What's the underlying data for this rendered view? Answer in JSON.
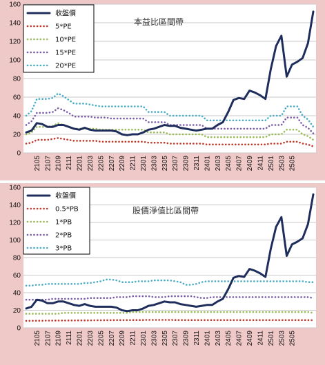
{
  "chart_data": [
    {
      "type": "line",
      "title": "本益比區間帶",
      "xlabel": "",
      "ylabel": "",
      "ylim": [
        0,
        160
      ],
      "yticks": [
        0,
        20,
        40,
        60,
        80,
        100,
        120,
        140,
        160
      ],
      "grid": true,
      "legend_position": "top-left",
      "tick_labels": [
        "2105",
        "2107",
        "2109",
        "2111",
        "2201",
        "2203",
        "2205",
        "2207",
        "2209",
        "2211",
        "2301",
        "2303",
        "2305",
        "2307",
        "2309",
        "2311",
        "2401",
        "2403",
        "2405",
        "2407",
        "2409",
        "2411",
        "2501",
        "2503",
        "2505"
      ],
      "series": [
        {
          "name": "收盤價",
          "color": "#1f2d5c",
          "style": "solid",
          "values": [
            22,
            24,
            32,
            31,
            28,
            28,
            30,
            30,
            28,
            26,
            25,
            27,
            25,
            24,
            24,
            24,
            24,
            23,
            20,
            19,
            20,
            20,
            22,
            25,
            26,
            28,
            30,
            29,
            29,
            27,
            26,
            25,
            24,
            25,
            26,
            26,
            30,
            33,
            44,
            57,
            59,
            58,
            67,
            65,
            62,
            58,
            90,
            115,
            126,
            82,
            95,
            98,
            102,
            118,
            152
          ]
        },
        {
          "name": "5*PE",
          "color": "#c0392b",
          "style": "dotted",
          "values": [
            10,
            11,
            14,
            14,
            14,
            15,
            16,
            15,
            14,
            13,
            13,
            13,
            13,
            13,
            12,
            12,
            12,
            12,
            12,
            12,
            12,
            12,
            12,
            11,
            11,
            11,
            11,
            10,
            10,
            10,
            10,
            10,
            10,
            10,
            9,
            9,
            9,
            9,
            9,
            9,
            9,
            9,
            9,
            9,
            9,
            9,
            10,
            10,
            10,
            12,
            12,
            12,
            10,
            9,
            7
          ]
        },
        {
          "name": "10*PE",
          "color": "#9bbb59",
          "style": "dotted",
          "values": [
            20,
            22,
            28,
            28,
            28,
            29,
            32,
            30,
            28,
            26,
            26,
            26,
            26,
            26,
            25,
            25,
            25,
            25,
            25,
            25,
            25,
            25,
            25,
            22,
            22,
            22,
            22,
            20,
            20,
            20,
            20,
            20,
            20,
            20,
            17,
            17,
            17,
            17,
            17,
            17,
            17,
            17,
            17,
            17,
            17,
            17,
            20,
            20,
            20,
            25,
            25,
            25,
            20,
            18,
            14
          ]
        },
        {
          "name": "15*PE",
          "color": "#7b5ea7",
          "style": "dotted",
          "values": [
            30,
            34,
            43,
            43,
            43,
            44,
            48,
            46,
            43,
            39,
            39,
            39,
            39,
            38,
            38,
            38,
            37,
            37,
            37,
            37,
            37,
            37,
            37,
            33,
            33,
            33,
            33,
            30,
            30,
            30,
            30,
            30,
            30,
            30,
            26,
            26,
            26,
            26,
            26,
            26,
            26,
            26,
            26,
            26,
            26,
            26,
            30,
            30,
            30,
            38,
            38,
            38,
            30,
            27,
            21
          ]
        },
        {
          "name": "20*PE",
          "color": "#4bacc6",
          "style": "dotted",
          "values": [
            40,
            45,
            58,
            58,
            58,
            59,
            64,
            61,
            57,
            53,
            53,
            53,
            52,
            51,
            50,
            50,
            50,
            50,
            50,
            50,
            50,
            50,
            50,
            44,
            44,
            44,
            44,
            40,
            40,
            40,
            40,
            40,
            40,
            40,
            35,
            35,
            35,
            35,
            35,
            35,
            35,
            35,
            35,
            35,
            35,
            35,
            40,
            40,
            40,
            50,
            50,
            50,
            40,
            36,
            28
          ]
        }
      ]
    },
    {
      "type": "line",
      "title": "股價淨值比區間帶",
      "xlabel": "",
      "ylabel": "",
      "ylim": [
        0,
        160
      ],
      "yticks": [
        0,
        20,
        40,
        60,
        80,
        100,
        120,
        140,
        160
      ],
      "grid": true,
      "legend_position": "top-left",
      "tick_labels": [
        "2105",
        "2107",
        "2109",
        "2111",
        "2201",
        "2203",
        "2205",
        "2207",
        "2209",
        "2211",
        "2301",
        "2303",
        "2305",
        "2307",
        "2309",
        "2311",
        "2401",
        "2403",
        "2405",
        "2407",
        "2409",
        "2411",
        "2501",
        "2503",
        "2505"
      ],
      "series": [
        {
          "name": "收盤價",
          "color": "#1f2d5c",
          "style": "solid",
          "values": [
            22,
            24,
            32,
            31,
            28,
            28,
            30,
            30,
            28,
            26,
            25,
            27,
            25,
            24,
            24,
            24,
            24,
            23,
            20,
            19,
            20,
            20,
            22,
            25,
            26,
            28,
            30,
            29,
            29,
            27,
            26,
            25,
            24,
            25,
            26,
            26,
            30,
            33,
            44,
            57,
            59,
            58,
            67,
            65,
            62,
            58,
            90,
            115,
            126,
            82,
            95,
            98,
            102,
            118,
            152
          ]
        },
        {
          "name": "0.5*PB",
          "color": "#c0392b",
          "style": "dotted",
          "values": [
            7.9,
            8.0,
            8.1,
            8.1,
            8.2,
            8.2,
            8.3,
            8.3,
            8.4,
            8.4,
            8.5,
            8.5,
            8.5,
            8.6,
            8.6,
            8.7,
            8.7,
            8.8,
            8.8,
            8.8,
            8.9,
            8.9,
            8.9,
            9.0,
            9.0,
            9.0,
            9.0,
            9.0,
            8.9,
            8.9,
            8.8,
            8.8,
            8.8,
            8.8,
            8.8,
            8.8,
            8.8,
            8.8,
            8.8,
            8.8,
            8.8,
            8.8,
            8.8,
            8.8,
            8.8,
            8.8,
            8.8,
            8.8,
            8.8,
            8.8,
            8.8,
            8.8,
            8.8,
            8.8,
            8.7
          ]
        },
        {
          "name": "1*PB",
          "color": "#9bbb59",
          "style": "dotted",
          "values": [
            16,
            16,
            16,
            16,
            16,
            16,
            16,
            17,
            17,
            17,
            17,
            17,
            17,
            17,
            17,
            17,
            17,
            17,
            17,
            17,
            18,
            18,
            18,
            18,
            18,
            18,
            18,
            18,
            18,
            18,
            18,
            18,
            18,
            18,
            18,
            18,
            18,
            18,
            18,
            18,
            18,
            18,
            18,
            18,
            18,
            18,
            18,
            18,
            18,
            18,
            18,
            18,
            18,
            18,
            17
          ]
        },
        {
          "name": "2*PB",
          "color": "#7b5ea7",
          "style": "dotted",
          "values": [
            32,
            32,
            32,
            32,
            32,
            33,
            33,
            33,
            33,
            33,
            33,
            33,
            34,
            34,
            34,
            34,
            34,
            35,
            35,
            35,
            36,
            36,
            36,
            36,
            35,
            35,
            35,
            36,
            36,
            36,
            36,
            36,
            35,
            34,
            34,
            35,
            35,
            35,
            35,
            35,
            35,
            35,
            35,
            35,
            35,
            35,
            35,
            35,
            35,
            35,
            35,
            35,
            35,
            35,
            34
          ]
        },
        {
          "name": "3*PB",
          "color": "#4bacc6",
          "style": "dotted",
          "values": [
            48,
            48,
            49,
            49,
            50,
            50,
            50,
            50,
            50,
            50,
            50,
            51,
            51,
            52,
            53,
            55,
            55,
            54,
            52,
            52,
            52,
            53,
            53,
            53,
            54,
            54,
            54,
            54,
            53,
            52,
            49,
            49,
            50,
            52,
            53,
            53,
            53,
            53,
            53,
            53,
            53,
            53,
            53,
            53,
            53,
            53,
            53,
            53,
            53,
            53,
            53,
            53,
            53,
            52,
            52
          ]
        }
      ]
    }
  ]
}
